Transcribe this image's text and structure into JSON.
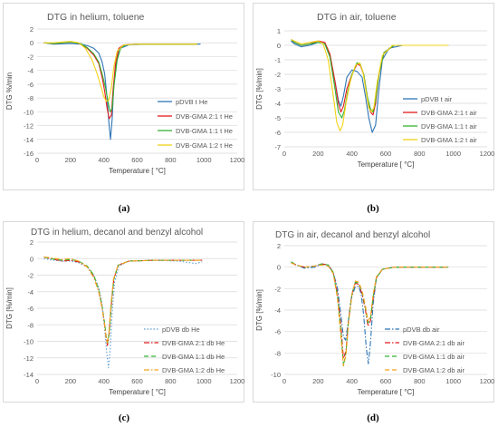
{
  "captions": [
    "(a)",
    "(b)",
    "(c)",
    "(d)"
  ],
  "chart_data": [
    {
      "type": "line",
      "title": "DTG in helium, toluene",
      "xlabel": "Temperature [ °C]",
      "ylabel": "DTG %/min",
      "xlim": [
        0,
        1200
      ],
      "ylim": [
        -16,
        2
      ],
      "xticks": [
        "0",
        "200",
        "400",
        "600",
        "800",
        "1000",
        "1200"
      ],
      "yticks": [
        "2",
        "0",
        "-2",
        "-4",
        "-6",
        "-8",
        "-10",
        "-12",
        "-14",
        "-16"
      ],
      "grid": true,
      "legend_position": "bottom-right",
      "series": [
        {
          "name": "pDVB t He",
          "color": "#2e75b6",
          "dash": "solid",
          "x": [
            40,
            100,
            200,
            260,
            300,
            340,
            370,
            390,
            405,
            420,
            430,
            440,
            450,
            460,
            475,
            500,
            550,
            650,
            800,
            980
          ],
          "y": [
            0,
            -0.2,
            -0.1,
            -0.2,
            -0.4,
            -0.8,
            -1.5,
            -2.8,
            -4.5,
            -8,
            -11.5,
            -14,
            -11,
            -6,
            -2.5,
            -0.8,
            -0.3,
            -0.2,
            -0.2,
            -0.2
          ]
        },
        {
          "name": "DVB-GMA 2:1 t He",
          "color": "#e31a1c",
          "dash": "solid",
          "x": [
            40,
            100,
            200,
            260,
            300,
            340,
            370,
            390,
            405,
            420,
            432,
            445,
            455,
            470,
            490,
            520,
            600,
            800,
            960
          ],
          "y": [
            0,
            -0.1,
            0.1,
            -0.1,
            -0.8,
            -1.8,
            -3,
            -5,
            -7,
            -9.5,
            -11,
            -10.5,
            -7,
            -3,
            -0.8,
            -0.3,
            -0.2,
            -0.2,
            -0.2
          ]
        },
        {
          "name": "DVB-GMA 1:1 t He",
          "color": "#33b233",
          "dash": "solid",
          "x": [
            40,
            100,
            200,
            260,
            300,
            340,
            370,
            390,
            410,
            425,
            437,
            450,
            462,
            480,
            500,
            530,
            600,
            800,
            960
          ],
          "y": [
            0,
            -0.1,
            0.1,
            -0.1,
            -0.7,
            -1.6,
            -2.8,
            -4.5,
            -6.5,
            -8.5,
            -10,
            -9.5,
            -6,
            -2.5,
            -0.8,
            -0.3,
            -0.2,
            -0.2,
            -0.2
          ]
        },
        {
          "name": "DVB-GMA 1:2 t He",
          "color": "#f2d318",
          "dash": "solid",
          "x": [
            40,
            100,
            200,
            250,
            290,
            330,
            360,
            385,
            400,
            415,
            430,
            445,
            460,
            480,
            520,
            600,
            800,
            960
          ],
          "y": [
            0,
            0,
            0.2,
            0,
            -0.8,
            -2.5,
            -4.5,
            -6.5,
            -7.8,
            -8.5,
            -8.3,
            -6.5,
            -3.5,
            -1.2,
            -0.3,
            -0.2,
            -0.2,
            -0.2
          ]
        }
      ]
    },
    {
      "type": "line",
      "title": "DTG in air, toluene",
      "xlabel": "Temperature [ °C]",
      "ylabel": "DTG [%/min]",
      "xlim": [
        0,
        1200
      ],
      "ylim": [
        -7,
        1
      ],
      "xticks": [
        "0",
        "200",
        "400",
        "600",
        "800",
        "1000",
        "1200"
      ],
      "yticks": [
        "1",
        "0",
        "-1",
        "-2",
        "-3",
        "-4",
        "-5",
        "-6",
        "-7"
      ],
      "grid": true,
      "legend_position": "bottom-right",
      "series": [
        {
          "name": "pDVB t air",
          "color": "#2e75b6",
          "dash": "solid",
          "x": [
            40,
            60,
            100,
            150,
            200,
            240,
            270,
            300,
            320,
            335,
            350,
            370,
            400,
            430,
            460,
            480,
            500,
            520,
            540,
            560,
            580,
            620,
            700,
            800,
            970
          ],
          "y": [
            0.3,
            0.1,
            -0.1,
            0,
            0.2,
            0.1,
            -0.8,
            -2.5,
            -3.8,
            -4.2,
            -3.5,
            -2.2,
            -1.7,
            -1.8,
            -2.2,
            -3.5,
            -5,
            -6,
            -5.5,
            -3,
            -1,
            -0.2,
            0,
            0,
            0
          ]
        },
        {
          "name": "DVB-GMA 2:1 t air",
          "color": "#e31a1c",
          "dash": "solid",
          "x": [
            40,
            60,
            100,
            150,
            200,
            240,
            270,
            300,
            320,
            335,
            350,
            370,
            400,
            430,
            450,
            470,
            490,
            510,
            525,
            540,
            560,
            590,
            650,
            800,
            970
          ],
          "y": [
            0.4,
            0.2,
            0,
            0.1,
            0.3,
            0.2,
            -0.6,
            -2.5,
            -4,
            -4.6,
            -4.2,
            -3,
            -2,
            -1.3,
            -1.4,
            -2,
            -3.5,
            -4.6,
            -4.8,
            -4,
            -2,
            -0.5,
            0,
            0,
            0
          ]
        },
        {
          "name": "DVB-GMA 1:1 t air",
          "color": "#33b233",
          "dash": "solid",
          "x": [
            40,
            60,
            100,
            150,
            200,
            240,
            270,
            300,
            320,
            340,
            355,
            375,
            400,
            430,
            450,
            470,
            490,
            510,
            525,
            540,
            560,
            590,
            650,
            800,
            970
          ],
          "y": [
            0.4,
            0.2,
            0,
            0.1,
            0.2,
            0.1,
            -0.8,
            -3,
            -4.6,
            -5,
            -4.5,
            -3.2,
            -2,
            -1.2,
            -1.3,
            -2,
            -3.5,
            -4.4,
            -4.6,
            -3.8,
            -2,
            -0.5,
            0,
            0,
            0
          ]
        },
        {
          "name": "DVB-GMA 1:2 t air",
          "color": "#f2d318",
          "dash": "solid",
          "x": [
            40,
            60,
            100,
            150,
            200,
            230,
            260,
            290,
            310,
            330,
            345,
            365,
            390,
            420,
            445,
            465,
            485,
            500,
            515,
            530,
            550,
            580,
            640,
            800,
            970
          ],
          "y": [
            0.4,
            0.3,
            0.1,
            0.2,
            0.3,
            0.1,
            -1,
            -3.5,
            -5.3,
            -5.9,
            -5.5,
            -4,
            -2.5,
            -1.4,
            -1.2,
            -1.8,
            -3.3,
            -4.3,
            -4.6,
            -4.3,
            -2.5,
            -0.7,
            0,
            0,
            0
          ]
        }
      ]
    },
    {
      "type": "line",
      "title": "DTG in helium, decanol and benzyl alcohol",
      "xlabel": "Temperature [ °C]",
      "ylabel": "DTG [%/min]",
      "xlim": [
        0,
        1200
      ],
      "ylim": [
        -14,
        2
      ],
      "xticks": [
        "0",
        "200",
        "400",
        "600",
        "800",
        "1000",
        "1200"
      ],
      "yticks": [
        "2",
        "0",
        "-2",
        "-4",
        "-6",
        "-8",
        "-10",
        "-12",
        "-14"
      ],
      "grid": true,
      "legend_position": "bottom-right",
      "series": [
        {
          "name": "pDVB db He",
          "color": "#5b9bd5",
          "dash": "dot",
          "x": [
            40,
            100,
            150,
            200,
            250,
            300,
            340,
            370,
            390,
            405,
            418,
            428,
            438,
            450,
            465,
            490,
            550,
            700,
            850,
            950,
            990
          ],
          "y": [
            0,
            -0.2,
            -0.3,
            -0.3,
            -0.5,
            -1,
            -2,
            -3.5,
            -5.5,
            -8.5,
            -11.5,
            -13.2,
            -11,
            -6.5,
            -2.8,
            -0.9,
            -0.3,
            -0.2,
            -0.3,
            -0.6,
            -0.4
          ]
        },
        {
          "name": "DVB-GMA 2:1 db He",
          "color": "#e31a1c",
          "dash": "dashdot",
          "x": [
            40,
            80,
            150,
            200,
            250,
            300,
            340,
            370,
            390,
            405,
            415,
            422,
            432,
            445,
            460,
            485,
            550,
            700,
            850,
            990
          ],
          "y": [
            0.2,
            0,
            -0.3,
            -0.2,
            -0.4,
            -1,
            -2.2,
            -4,
            -6,
            -8,
            -9.8,
            -10.5,
            -9,
            -5.5,
            -2.5,
            -0.8,
            -0.3,
            -0.2,
            -0.2,
            -0.2
          ]
        },
        {
          "name": "DVB-GMA 1:1 db He",
          "color": "#33b233",
          "dash": "dash",
          "x": [
            40,
            80,
            150,
            200,
            250,
            300,
            340,
            370,
            390,
            405,
            415,
            423,
            433,
            445,
            460,
            485,
            550,
            700,
            850,
            990
          ],
          "y": [
            0.2,
            0,
            -0.2,
            -0.1,
            -0.3,
            -0.9,
            -2,
            -3.8,
            -5.8,
            -7.8,
            -9.5,
            -10.2,
            -9,
            -5.5,
            -2.5,
            -0.8,
            -0.3,
            -0.2,
            -0.2,
            -0.2
          ]
        },
        {
          "name": "DVB-GMA 1:2 db He",
          "color": "#f4a21a",
          "dash": "dashdot",
          "x": [
            40,
            80,
            150,
            200,
            250,
            300,
            340,
            370,
            390,
            405,
            413,
            420,
            430,
            443,
            458,
            485,
            550,
            700,
            850,
            990
          ],
          "y": [
            0.2,
            0.1,
            -0.1,
            0,
            -0.3,
            -1,
            -2.3,
            -4,
            -6,
            -8,
            -9.5,
            -10.2,
            -9,
            -5.5,
            -2.5,
            -0.8,
            -0.3,
            -0.2,
            -0.2,
            -0.2
          ]
        }
      ]
    },
    {
      "type": "line",
      "title": "DTG in air, decanol and benzyl alcohol",
      "xlabel": "Temperature [ °C]",
      "ylabel": "DTG [%/min]",
      "xlim": [
        0,
        1200
      ],
      "ylim": [
        -10,
        2
      ],
      "xticks": [
        "0",
        "200",
        "400",
        "600",
        "800",
        "1000",
        "1200"
      ],
      "yticks": [
        "2",
        "0",
        "-2",
        "-4",
        "-6",
        "-8",
        "-10"
      ],
      "grid": true,
      "legend_position": "bottom-right",
      "series": [
        {
          "name": "pDVB db air",
          "color": "#2e75b6",
          "dash": "dashdot",
          "x": [
            40,
            70,
            120,
            180,
            220,
            260,
            290,
            315,
            335,
            350,
            362,
            375,
            395,
            420,
            440,
            455,
            470,
            485,
            497,
            510,
            525,
            545,
            580,
            650,
            800,
            970
          ],
          "y": [
            0.5,
            0.2,
            -0.1,
            0,
            0.3,
            0.2,
            -0.5,
            -2,
            -4.5,
            -6.5,
            -6.8,
            -5.5,
            -3,
            -1.8,
            -1.8,
            -2.5,
            -4.5,
            -7.5,
            -9,
            -7,
            -3.5,
            -1,
            -0.2,
            0,
            0,
            0
          ]
        },
        {
          "name": "DVB-GMA 2:1 db air",
          "color": "#e31a1c",
          "dash": "dashdot",
          "x": [
            40,
            70,
            120,
            180,
            220,
            260,
            290,
            315,
            335,
            350,
            365,
            380,
            400,
            420,
            440,
            460,
            480,
            495,
            510,
            525,
            545,
            580,
            650,
            800,
            970
          ],
          "y": [
            0.4,
            0.2,
            0,
            0.1,
            0.3,
            0.2,
            -0.5,
            -2.5,
            -5.5,
            -8.5,
            -7.8,
            -5,
            -2.5,
            -1.5,
            -1.6,
            -2.5,
            -4,
            -5.5,
            -5,
            -3,
            -1,
            -0.2,
            0,
            0,
            0
          ]
        },
        {
          "name": "DVB-GMA 1:1 db air",
          "color": "#33b233",
          "dash": "dash",
          "x": [
            40,
            70,
            120,
            180,
            220,
            260,
            290,
            315,
            335,
            350,
            365,
            380,
            400,
            420,
            440,
            460,
            480,
            495,
            510,
            525,
            545,
            580,
            650,
            800,
            970
          ],
          "y": [
            0.5,
            0.2,
            0,
            0.1,
            0.3,
            0.2,
            -0.5,
            -2.8,
            -6,
            -9.2,
            -8,
            -5,
            -2.5,
            -1.4,
            -1.5,
            -2.3,
            -3.8,
            -5.2,
            -4.8,
            -2.8,
            -1,
            -0.2,
            0,
            0,
            0
          ]
        },
        {
          "name": "DVB-GMA 1:2 db air",
          "color": "#f4a21a",
          "dash": "dash",
          "x": [
            40,
            70,
            120,
            180,
            220,
            260,
            290,
            315,
            335,
            350,
            365,
            380,
            400,
            420,
            440,
            460,
            480,
            495,
            510,
            525,
            545,
            580,
            650,
            800,
            970
          ],
          "y": [
            0.4,
            0.2,
            0,
            0.1,
            0.2,
            0.1,
            -0.6,
            -3,
            -6.5,
            -9.2,
            -8.2,
            -5.2,
            -2.6,
            -1.3,
            -1.4,
            -2.2,
            -3.6,
            -5,
            -4.6,
            -2.6,
            -0.9,
            -0.2,
            0,
            0,
            0
          ]
        }
      ]
    }
  ]
}
